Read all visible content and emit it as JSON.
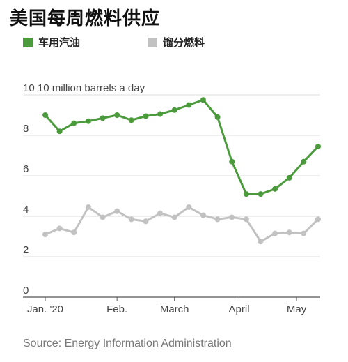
{
  "title": "美国每周燃料供应",
  "legend": {
    "gasoline": "车用汽油",
    "distillate": "馏分燃料"
  },
  "source": "Source: Energy Information Administration",
  "colors": {
    "gasoline": "#4b9b3c",
    "distillate": "#c2c2c2",
    "grid": "#dcdcdc"
  },
  "chart_data": {
    "type": "line",
    "y_unit_label": "10 million barrels a day",
    "ylim": [
      0,
      10
    ],
    "yticks": [
      {
        "value": 10,
        "label": "10"
      },
      {
        "value": 8,
        "label": "8"
      },
      {
        "value": 6,
        "label": "6"
      },
      {
        "value": 4,
        "label": "4"
      },
      {
        "value": 2,
        "label": "2"
      },
      {
        "value": 0,
        "label": "0"
      }
    ],
    "xticks": [
      {
        "week": 1,
        "label": "Jan. '20"
      },
      {
        "week": 6,
        "label": "Feb."
      },
      {
        "week": 10,
        "label": "March"
      },
      {
        "week": 14.5,
        "label": "April"
      },
      {
        "week": 18.5,
        "label": "May"
      }
    ],
    "weeks": [
      1,
      2,
      3,
      4,
      5,
      6,
      7,
      8,
      9,
      10,
      11,
      12,
      13,
      14,
      15,
      16,
      17,
      18,
      19,
      20
    ],
    "series": [
      {
        "name": "车用汽油",
        "key": "gasoline",
        "values": [
          9.0,
          8.2,
          8.6,
          8.7,
          8.85,
          9.0,
          8.75,
          8.95,
          9.05,
          9.25,
          9.5,
          9.75,
          8.9,
          6.7,
          5.1,
          5.1,
          5.35,
          5.9,
          6.7,
          7.45
        ]
      },
      {
        "name": "馏分燃料",
        "key": "distillate",
        "values": [
          3.1,
          3.4,
          3.2,
          4.45,
          3.95,
          4.25,
          3.85,
          3.75,
          4.15,
          3.95,
          4.45,
          4.05,
          3.85,
          3.95,
          3.85,
          2.75,
          3.15,
          3.2,
          3.15,
          3.85
        ]
      }
    ],
    "grid": true,
    "legend_position": "top-left"
  }
}
